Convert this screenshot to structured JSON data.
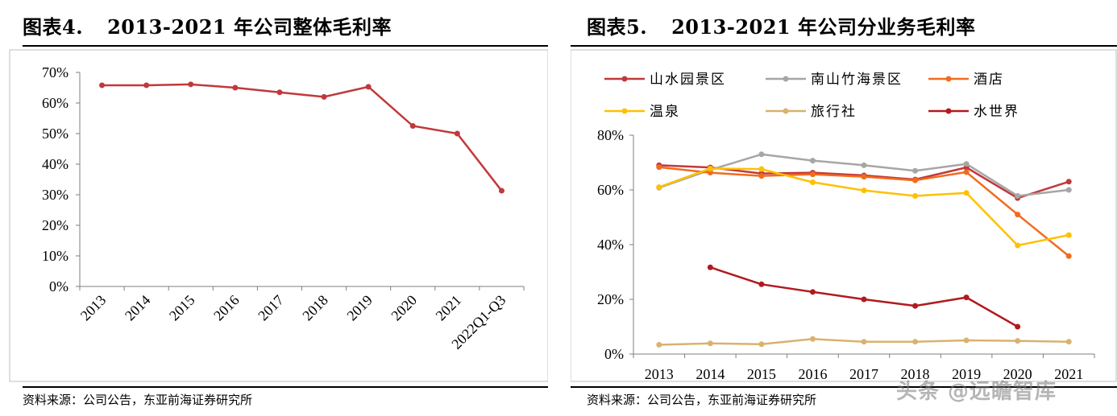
{
  "left_panel": {
    "figure_label": "图表4.",
    "figure_title": "2013-2021 年公司整体毛利率",
    "source": "资料来源：公司公告，东亚前海证券研究所"
  },
  "right_panel": {
    "figure_label": "图表5.",
    "figure_title": "2013-2021 年公司分业务毛利率",
    "source": "资料来源：公司公告，东亚前海证券研究所"
  },
  "watermark": "头条 @远瞻智库",
  "colors": {
    "left_line": "#c0393b",
    "series": [
      "#c0393b",
      "#a6a6a6",
      "#f26b1d",
      "#ffc000",
      "#d9b26e",
      "#b11a1f"
    ]
  },
  "chart_data": [
    {
      "type": "line",
      "title": "",
      "xlabel": "",
      "ylabel": "",
      "categories": [
        "2013",
        "2014",
        "2015",
        "2016",
        "2017",
        "2018",
        "2019",
        "2020",
        "2021",
        "2022Q1-Q3"
      ],
      "yticks": [
        "0%",
        "10%",
        "20%",
        "30%",
        "40%",
        "50%",
        "60%",
        "70%"
      ],
      "ylim": [
        0,
        70
      ],
      "grid": false,
      "legend": "none",
      "series": [
        {
          "values": [
            65.8,
            65.8,
            66.1,
            65.0,
            63.5,
            62.0,
            65.3,
            52.5,
            50.0,
            31.3
          ]
        }
      ]
    },
    {
      "type": "line",
      "title": "",
      "xlabel": "",
      "ylabel": "",
      "categories": [
        "2013",
        "2014",
        "2015",
        "2016",
        "2017",
        "2018",
        "2019",
        "2020",
        "2021"
      ],
      "yticks": [
        "0%",
        "20%",
        "40%",
        "60%",
        "80%"
      ],
      "ylim": [
        0,
        80
      ],
      "grid": false,
      "legend": "top",
      "series": [
        {
          "name": "山水园景区",
          "values": [
            69.0,
            68.2,
            66.0,
            66.3,
            65.3,
            63.8,
            68.2,
            57.0,
            63.0
          ]
        },
        {
          "name": "南山竹海景区",
          "values": [
            60.8,
            67.3,
            73.0,
            70.7,
            69.0,
            67.0,
            69.5,
            57.8,
            60.0
          ]
        },
        {
          "name": "酒店",
          "values": [
            68.3,
            66.3,
            65.1,
            65.7,
            64.8,
            63.5,
            66.5,
            51.0,
            35.8
          ]
        },
        {
          "name": "温泉",
          "values": [
            61.0,
            67.8,
            67.6,
            62.8,
            59.8,
            57.8,
            58.9,
            39.7,
            43.5
          ]
        },
        {
          "name": "旅行社",
          "values": [
            3.4,
            3.9,
            3.6,
            5.5,
            4.5,
            4.5,
            5.0,
            4.8,
            4.5
          ]
        },
        {
          "name": "水世界",
          "values": [
            null,
            31.7,
            25.5,
            22.7,
            20.0,
            17.6,
            20.7,
            10.0,
            null
          ]
        }
      ]
    }
  ]
}
